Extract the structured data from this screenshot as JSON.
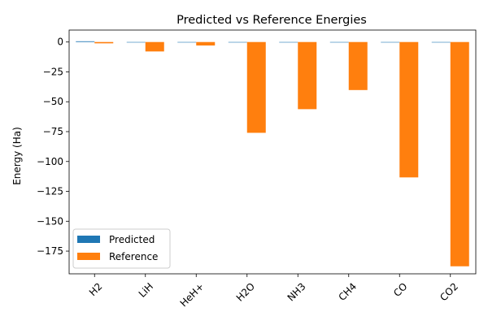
{
  "chart_data": {
    "type": "bar",
    "title": "Predicted vs Reference Energies",
    "xlabel": "",
    "ylabel": "Energy (Ha)",
    "categories": [
      "H2",
      "LiH",
      "HeH+",
      "H2O",
      "NH3",
      "CH4",
      "CO",
      "CO2"
    ],
    "series": [
      {
        "name": "Predicted",
        "color": "#1f77b4",
        "values": [
          0.6,
          0,
          0,
          0,
          0,
          0,
          0,
          0
        ]
      },
      {
        "name": "Reference",
        "color": "#ff7f0e",
        "values": [
          -1.1,
          -7.9,
          -2.9,
          -76.0,
          -56.2,
          -40.2,
          -113.3,
          -187.7
        ]
      }
    ],
    "yticks": [
      0,
      -25,
      -50,
      -75,
      -100,
      -125,
      -150,
      -175
    ],
    "ytick_labels": [
      "0",
      "−25",
      "−50",
      "−75",
      "−100",
      "−125",
      "−150",
      "−175"
    ],
    "ylim": [
      -194,
      10
    ],
    "grid": false,
    "legend_position": "lower-left"
  }
}
